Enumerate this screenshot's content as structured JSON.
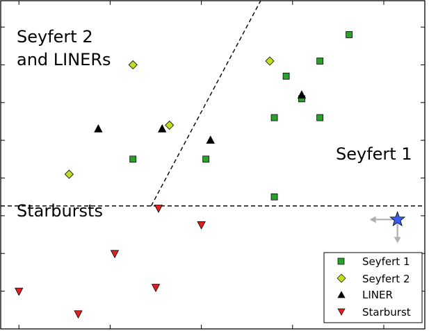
{
  "chart_data": {
    "type": "scatter",
    "title": "",
    "xlabel": "",
    "ylabel": "",
    "xlim": [
      -0.2,
      4.45
    ],
    "ylim": [
      -1.5,
      2.85
    ],
    "grid": false,
    "legend_position": "bottom-right",
    "series": [
      {
        "name": "Seyfert 1",
        "marker": "square",
        "color": "#2ca02c",
        "points": [
          [
            2.05,
            0.75
          ],
          [
            2.8,
            1.3
          ],
          [
            2.93,
            1.85
          ],
          [
            3.3,
            2.05
          ],
          [
            3.1,
            1.55
          ],
          [
            3.62,
            2.4
          ],
          [
            1.25,
            0.75
          ],
          [
            2.8,
            0.25
          ],
          [
            3.3,
            1.3
          ]
        ]
      },
      {
        "name": "Seyfert 2",
        "marker": "diamond",
        "color": "#bfdf1f",
        "points": [
          [
            1.25,
            2.0
          ],
          [
            2.75,
            2.05
          ],
          [
            0.55,
            0.55
          ],
          [
            1.65,
            1.2
          ]
        ]
      },
      {
        "name": "LINER",
        "marker": "triangle-up",
        "color": "#000000",
        "points": [
          [
            0.87,
            1.15
          ],
          [
            1.57,
            1.15
          ],
          [
            2.1,
            1.0
          ],
          [
            3.1,
            1.6
          ]
        ]
      },
      {
        "name": "Starburst",
        "marker": "triangle-down",
        "color": "#e02020",
        "points": [
          [
            0.0,
            -1.0
          ],
          [
            0.65,
            -1.3
          ],
          [
            1.05,
            -0.5
          ],
          [
            1.5,
            -0.95
          ],
          [
            1.53,
            0.1
          ],
          [
            2.0,
            -0.12
          ]
        ]
      }
    ],
    "lines": [
      {
        "style": "dashed",
        "points": [
          [
            -0.2,
            0.13
          ],
          [
            4.45,
            0.13
          ]
        ]
      },
      {
        "style": "dashed",
        "points": [
          [
            1.45,
            0.13
          ],
          [
            2.65,
            2.85
          ]
        ]
      }
    ],
    "highlight": {
      "marker": "star",
      "color": "#3a5ff0",
      "point": [
        4.15,
        -0.05
      ],
      "arrows": [
        "left",
        "down"
      ],
      "arrow_color": "#b0b0b0"
    },
    "region_labels": [
      {
        "lines": [
          "Seyfert 2",
          "and LINERs"
        ],
        "anchor": "top-left"
      },
      {
        "lines": [
          "Seyfert 1"
        ],
        "anchor": "right"
      },
      {
        "lines": [
          "Starbursts"
        ],
        "anchor": "left"
      }
    ]
  }
}
